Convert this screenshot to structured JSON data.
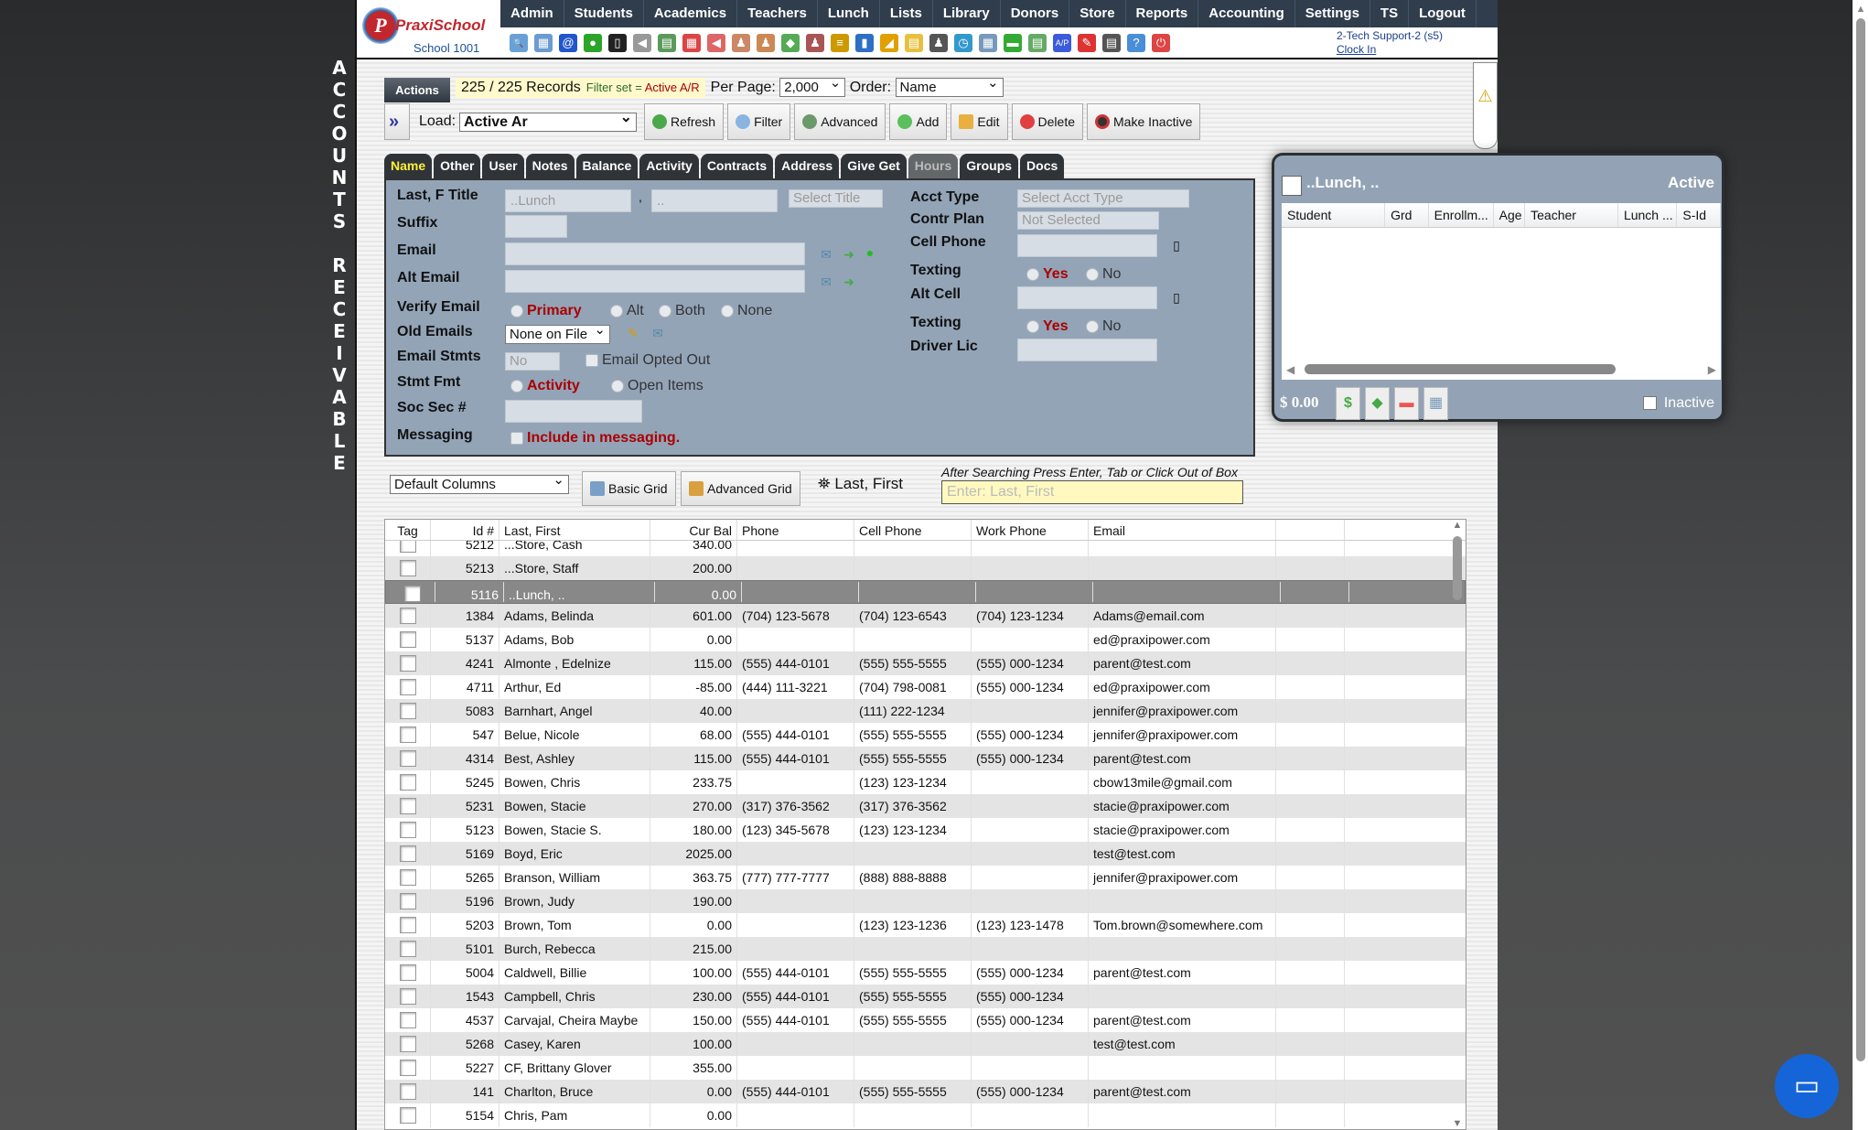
{
  "side_title": [
    "A",
    "C",
    "C",
    "O",
    "U",
    "N",
    "T",
    "S",
    "",
    "R",
    "E",
    "C",
    "E",
    "I",
    "V",
    "A",
    "B",
    "L",
    "E"
  ],
  "logo": {
    "brand": "PraxiSchool",
    "school": "School 1001"
  },
  "nav": [
    "Admin",
    "Students",
    "Academics",
    "Teachers",
    "Lunch",
    "Lists",
    "Library",
    "Donors",
    "Store",
    "Reports",
    "Accounting",
    "Settings",
    "TS",
    "Logout"
  ],
  "toolbar_icons": [
    {
      "name": "search",
      "c": "#6aa0d8",
      "g": "🔍"
    },
    {
      "name": "grid",
      "c": "#6b9bd1",
      "g": "▦"
    },
    {
      "name": "email",
      "c": "#2255cc",
      "g": "@"
    },
    {
      "name": "chat",
      "c": "#2aa52a",
      "g": "●"
    },
    {
      "name": "phone",
      "c": "#222",
      "g": "▯"
    },
    {
      "name": "speaker",
      "c": "#999",
      "g": "◀"
    },
    {
      "name": "report",
      "c": "#5b9a5b",
      "g": "▤"
    },
    {
      "name": "calendar",
      "c": "#d44",
      "g": "▦"
    },
    {
      "name": "megaphone",
      "c": "#d66",
      "g": "◀"
    },
    {
      "name": "add-person",
      "c": "#c86",
      "g": "♟"
    },
    {
      "name": "person",
      "c": "#c85",
      "g": "♟"
    },
    {
      "name": "money",
      "c": "#5a5",
      "g": "◆"
    },
    {
      "name": "people",
      "c": "#a55",
      "g": "♟"
    },
    {
      "name": "burger",
      "c": "#c90",
      "g": "≡"
    },
    {
      "name": "book",
      "c": "#2c6fc4",
      "g": "▮"
    },
    {
      "name": "bell",
      "c": "#e0a000",
      "g": "◢"
    },
    {
      "name": "note",
      "c": "#e8c040",
      "g": "▤"
    },
    {
      "name": "staff",
      "c": "#555",
      "g": "♟"
    },
    {
      "name": "clock",
      "c": "#39c",
      "g": "◷"
    },
    {
      "name": "table",
      "c": "#79b",
      "g": "▦"
    },
    {
      "name": "card",
      "c": "#3a3",
      "g": "▬"
    },
    {
      "name": "printer",
      "c": "#6a6",
      "g": "▤"
    },
    {
      "name": "ap",
      "c": "#3b5bdb",
      "g": "A/P"
    },
    {
      "name": "pdf",
      "c": "#d33",
      "g": "✎"
    },
    {
      "name": "cash",
      "c": "#555",
      "g": "▤"
    },
    {
      "name": "help",
      "c": "#4a8ed8",
      "g": "?"
    },
    {
      "name": "power",
      "c": "#d44",
      "g": "⏻"
    }
  ],
  "user": {
    "name": "2-Tech Support-2 (s5)",
    "clock_in": "Clock In"
  },
  "actions": {
    "tab": "Actions",
    "records": "225 / 225 Records",
    "filter_prefix": "Filter set = ",
    "filter_value": "Active A/R",
    "per_page_label": "Per Page:",
    "per_page": "2,000",
    "order_label": "Order:",
    "order": "Name"
  },
  "load": {
    "label": "Load:",
    "value": "Active Ar"
  },
  "buttons": {
    "refresh": "Refresh",
    "filter": "Filter",
    "advanced": "Advanced",
    "add": "Add",
    "edit": "Edit",
    "delete": "Delete",
    "make_inactive": "Make Inactive"
  },
  "tabs": [
    "Name",
    "Other",
    "User",
    "Notes",
    "Balance",
    "Activity",
    "Contracts",
    "Address",
    "Give Get",
    "Hours",
    "Groups",
    "Docs"
  ],
  "form": {
    "last_f_title": "Last, F Title",
    "last_value": "..Lunch",
    "first_value": "..",
    "title_placeholder": "Select Title",
    "suffix": "Suffix",
    "email": "Email",
    "alt_email": "Alt Email",
    "verify_email": "Verify Email",
    "verify_options": [
      "Primary",
      "Alt",
      "Both",
      "None"
    ],
    "old_emails": "Old Emails",
    "old_emails_value": "None on File",
    "email_stmts": "Email Stmts",
    "email_stmts_value": "No",
    "email_opted_out": "Email Opted Out",
    "stmt_fmt": "Stmt Fmt",
    "stmt_options": [
      "Activity",
      "Open Items"
    ],
    "soc_sec": "Soc Sec #",
    "messaging": "Messaging",
    "include_messaging": "Include in messaging.",
    "acct_type": "Acct Type",
    "acct_type_placeholder": "Select Acct Type",
    "contr_plan": "Contr Plan",
    "contr_plan_value": "Not Selected",
    "cell_phone": "Cell Phone",
    "texting": "Texting",
    "yes": "Yes",
    "no": "No",
    "alt_cell": "Alt Cell",
    "driver_lic": "Driver Lic"
  },
  "popup": {
    "name": "..Lunch, ..",
    "status": "Active",
    "columns": [
      "Student",
      "Grd",
      "Enrollm...",
      "Age",
      "Teacher",
      "Lunch ...",
      "S-Id"
    ],
    "balance": "$ 0.00",
    "inactive": "Inactive"
  },
  "grid_controls": {
    "columns_select": "Default Columns",
    "basic_grid": "Basic Grid",
    "advanced_grid": "Advanced Grid",
    "search_label": "Last, First",
    "search_note": "After Searching Press Enter, Tab or Click Out of Box",
    "search_placeholder": "Enter: Last, First"
  },
  "table": {
    "headers": [
      "Tag",
      "Id #",
      "Last, First",
      "Cur Bal",
      "Phone",
      "Cell Phone",
      "Work Phone",
      "Email",
      ""
    ],
    "selected_id": "5116",
    "rows": [
      [
        "5212",
        "...Store, Cash",
        "340.00",
        "",
        "",
        "",
        ""
      ],
      [
        "5213",
        "...Store, Staff",
        "200.00",
        "",
        "",
        "",
        ""
      ],
      [
        "5116",
        "..Lunch, ..",
        "0.00",
        "",
        "",
        "",
        ""
      ],
      [
        "1384",
        "Adams, Belinda",
        "601.00",
        "(704) 123-5678",
        "(704) 123-6543",
        "(704) 123-1234",
        "Adams@email.com"
      ],
      [
        "5137",
        "Adams, Bob",
        "0.00",
        "",
        "",
        "",
        "ed@praxipower.com"
      ],
      [
        "4241",
        "Almonte , Edelnize",
        "115.00",
        "(555) 444-0101",
        "(555) 555-5555",
        "(555) 000-1234",
        "parent@test.com"
      ],
      [
        "4711",
        "Arthur, Ed",
        "-85.00",
        "(444) 111-3221",
        "(704) 798-0081",
        "(555) 000-1234",
        "ed@praxipower.com"
      ],
      [
        "5083",
        "Barnhart, Angel",
        "40.00",
        "",
        "(111) 222-1234",
        "",
        "jennifer@praxipower.com"
      ],
      [
        "547",
        "Belue, Nicole",
        "68.00",
        "(555) 444-0101",
        "(555) 555-5555",
        "(555) 000-1234",
        "jennifer@praxipower.com"
      ],
      [
        "4314",
        "Best, Ashley",
        "115.00",
        "(555) 444-0101",
        "(555) 555-5555",
        "(555) 000-1234",
        "parent@test.com"
      ],
      [
        "5245",
        "Bowen, Chris",
        "233.75",
        "",
        "(123) 123-1234",
        "",
        "cbow13mile@gmail.com"
      ],
      [
        "5231",
        "Bowen, Stacie",
        "270.00",
        "(317) 376-3562",
        "(317) 376-3562",
        "",
        "stacie@praxipower.com"
      ],
      [
        "5123",
        "Bowen, Stacie S.",
        "180.00",
        "(123) 345-5678",
        "(123) 123-1234",
        "",
        "stacie@praxipower.com"
      ],
      [
        "5169",
        "Boyd, Eric",
        "2025.00",
        "",
        "",
        "",
        "test@test.com"
      ],
      [
        "5265",
        "Branson, William",
        "363.75",
        "(777) 777-7777",
        "(888) 888-8888",
        "",
        "jennifer@praxipower.com"
      ],
      [
        "5196",
        "Brown, Judy",
        "190.00",
        "",
        "",
        "",
        ""
      ],
      [
        "5203",
        "Brown, Tom",
        "0.00",
        "",
        "(123) 123-1236",
        "(123) 123-1478",
        "Tom.brown@somewhere.com"
      ],
      [
        "5101",
        "Burch, Rebecca",
        "215.00",
        "",
        "",
        "",
        ""
      ],
      [
        "5004",
        "Caldwell, Billie",
        "100.00",
        "(555) 444-0101",
        "(555) 555-5555",
        "(555) 000-1234",
        "parent@test.com"
      ],
      [
        "1543",
        "Campbell, Chris",
        "230.00",
        "(555) 444-0101",
        "(555) 555-5555",
        "(555) 000-1234",
        ""
      ],
      [
        "4537",
        "Carvajal, Cheira Maybe",
        "150.00",
        "(555) 444-0101",
        "(555) 555-5555",
        "(555) 000-1234",
        "parent@test.com"
      ],
      [
        "5268",
        "Casey, Karen",
        "100.00",
        "",
        "",
        "",
        "test@test.com"
      ],
      [
        "5227",
        "CF, Brittany Glover",
        "355.00",
        "",
        "",
        "",
        ""
      ],
      [
        "141",
        "Charlton, Bruce",
        "0.00",
        "(555) 444-0101",
        "(555) 555-5555",
        "(555) 000-1234",
        "parent@test.com"
      ],
      [
        "5154",
        "Chris, Pam",
        "0.00",
        "",
        "",
        "",
        ""
      ]
    ]
  }
}
